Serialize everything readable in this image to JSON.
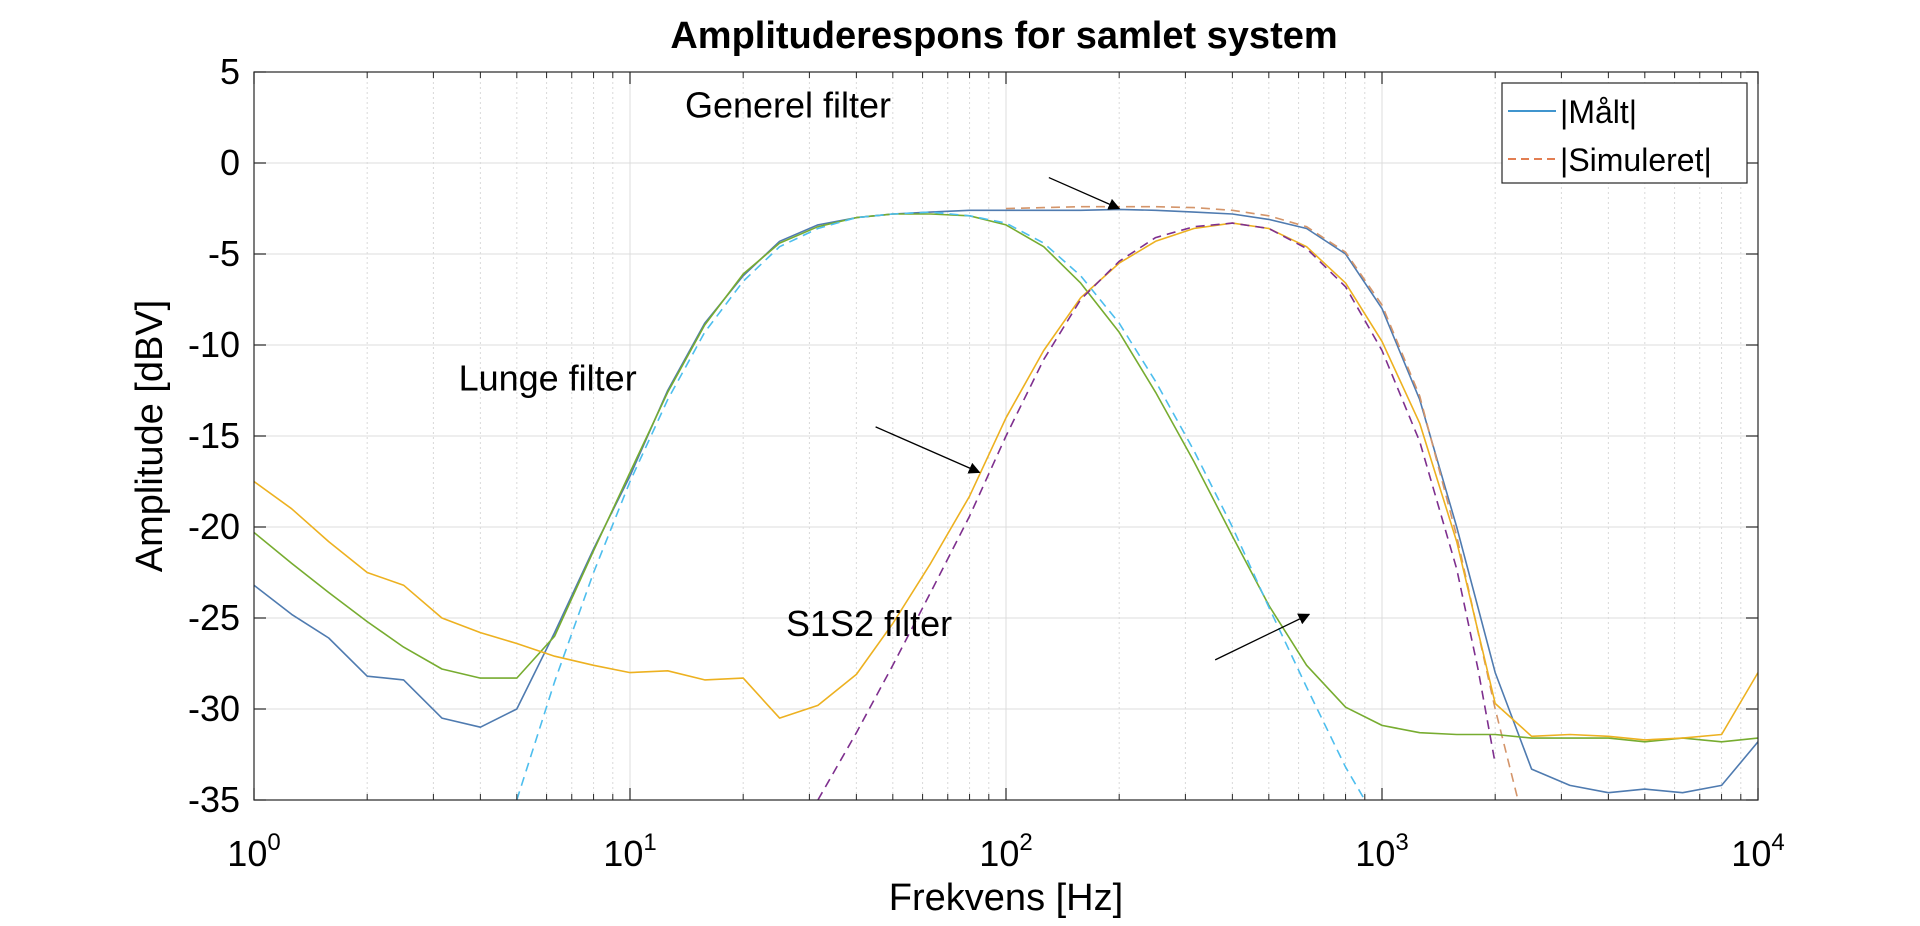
{
  "chart_data": {
    "type": "line",
    "title": "Amplituderespons for samlet system",
    "xlabel": "Frekvens [Hz]",
    "ylabel": "Amplitude [dBV]",
    "xscale": "log",
    "xlim": [
      1,
      10000
    ],
    "ylim": [
      -35,
      5
    ],
    "grid": true,
    "x_ticks": [
      {
        "base": "10",
        "exp": "0",
        "value": 1
      },
      {
        "base": "10",
        "exp": "1",
        "value": 10
      },
      {
        "base": "10",
        "exp": "2",
        "value": 100
      },
      {
        "base": "10",
        "exp": "3",
        "value": 1000
      },
      {
        "base": "10",
        "exp": "4",
        "value": 10000
      }
    ],
    "y_ticks": [
      "5",
      "0",
      "-5",
      "-10",
      "-15",
      "-20",
      "-25",
      "-30",
      "-35"
    ],
    "legend": {
      "position": "top-right",
      "entries": [
        {
          "label": "|Målt|",
          "style": "solid",
          "color": "#0072BD"
        },
        {
          "label": "|Simuleret|",
          "style": "dashed",
          "color": "#D95319"
        }
      ]
    },
    "annotations": [
      {
        "text": "Generel filter",
        "x": 14,
        "y": 2.5,
        "arrow_to": [
          200,
          -2.5
        ]
      },
      {
        "text": "Lunge filter",
        "x": 3.5,
        "y": -12.5,
        "arrow_to": [
          85,
          -17
        ]
      },
      {
        "text": "S1S2 filter",
        "x": 26,
        "y": -26,
        "arrow_to": [
          640,
          -24.8
        ]
      }
    ],
    "series": [
      {
        "group": "generel",
        "kind": "measured",
        "color": "#4F7BB0",
        "style": "solid",
        "x": [
          1,
          1.26,
          1.58,
          2,
          2.5,
          3.16,
          4,
          5,
          6.3,
          8,
          10,
          12.6,
          15.8,
          20,
          25,
          31.6,
          40,
          50,
          63,
          80,
          100,
          126,
          158,
          200,
          250,
          316,
          400,
          500,
          630,
          800,
          1000,
          1260,
          1580,
          2000,
          2500,
          3160,
          4000,
          5000,
          6300,
          8000,
          10000
        ],
        "y": [
          -23.2,
          -24.8,
          -26.1,
          -28.2,
          -28.4,
          -30.5,
          -31.0,
          -30.0,
          -25.8,
          -21.2,
          -17.2,
          -12.5,
          -8.8,
          -6.2,
          -4.3,
          -3.4,
          -3.0,
          -2.8,
          -2.7,
          -2.6,
          -2.6,
          -2.6,
          -2.6,
          -2.55,
          -2.6,
          -2.7,
          -2.8,
          -3.1,
          -3.6,
          -5.0,
          -8.0,
          -13.0,
          -20.0,
          -28.0,
          -33.3,
          -34.2,
          -34.6,
          -34.4,
          -34.6,
          -34.2,
          -31.8
        ]
      },
      {
        "group": "generel",
        "kind": "simulated",
        "color": "#D4956A",
        "style": "dashed",
        "x": [
          100,
          126,
          158,
          200,
          250,
          316,
          400,
          500,
          630,
          800,
          1000,
          1260,
          1580,
          2000,
          2300
        ],
        "y": [
          -2.5,
          -2.45,
          -2.4,
          -2.4,
          -2.4,
          -2.45,
          -2.6,
          -2.9,
          -3.5,
          -4.9,
          -7.8,
          -12.8,
          -20.5,
          -30.0,
          -35.0
        ]
      },
      {
        "group": "s1s2",
        "kind": "measured",
        "color": "#77AC30",
        "style": "solid",
        "x": [
          1,
          1.26,
          1.58,
          2,
          2.5,
          3.16,
          4,
          5,
          6.3,
          8,
          10,
          12.6,
          15.8,
          20,
          25,
          31.6,
          40,
          50,
          63,
          80,
          100,
          126,
          158,
          200,
          250,
          316,
          400,
          500,
          630,
          800,
          1000,
          1260,
          1580,
          2000,
          2500,
          3160,
          4000,
          5000,
          6300,
          8000,
          10000
        ],
        "y": [
          -20.3,
          -22.0,
          -23.6,
          -25.2,
          -26.6,
          -27.8,
          -28.3,
          -28.3,
          -26.0,
          -21.3,
          -17.0,
          -12.6,
          -8.9,
          -6.1,
          -4.4,
          -3.5,
          -3.0,
          -2.8,
          -2.8,
          -2.9,
          -3.4,
          -4.6,
          -6.6,
          -9.3,
          -12.6,
          -16.4,
          -20.5,
          -24.3,
          -27.6,
          -29.9,
          -30.9,
          -31.3,
          -31.4,
          -31.4,
          -31.6,
          -31.6,
          -31.6,
          -31.8,
          -31.6,
          -31.8,
          -31.6
        ]
      },
      {
        "group": "s1s2",
        "kind": "simulated",
        "color": "#4DBEEE",
        "style": "dashed",
        "x": [
          5,
          6.3,
          8,
          10,
          12.6,
          15.8,
          20,
          25,
          31.6,
          40,
          50,
          63,
          80,
          100,
          126,
          158,
          200,
          250,
          316,
          400,
          500,
          630,
          800,
          900
        ],
        "y": [
          -35.0,
          -28.5,
          -22.5,
          -17.5,
          -13.0,
          -9.3,
          -6.5,
          -4.6,
          -3.6,
          -3.0,
          -2.8,
          -2.7,
          -2.9,
          -3.3,
          -4.4,
          -6.2,
          -8.8,
          -12.0,
          -15.8,
          -20.0,
          -24.4,
          -28.8,
          -33.2,
          -35.0
        ]
      },
      {
        "group": "lunge",
        "kind": "measured",
        "color": "#EDB120",
        "style": "solid",
        "x": [
          1,
          1.26,
          1.58,
          2,
          2.5,
          3.16,
          4,
          5,
          6.3,
          8,
          10,
          12.6,
          15.8,
          20,
          25,
          31.6,
          40,
          50,
          63,
          80,
          100,
          126,
          158,
          200,
          250,
          316,
          400,
          500,
          630,
          800,
          1000,
          1260,
          1580,
          2000,
          2500,
          3160,
          4000,
          5000,
          6300,
          8000,
          10000
        ],
        "y": [
          -17.5,
          -19.0,
          -20.8,
          -22.5,
          -23.2,
          -25.0,
          -25.8,
          -26.4,
          -27.1,
          -27.6,
          -28.0,
          -27.9,
          -28.4,
          -28.3,
          -30.5,
          -29.8,
          -28.1,
          -25.3,
          -22.0,
          -18.3,
          -14.0,
          -10.3,
          -7.4,
          -5.5,
          -4.3,
          -3.6,
          -3.3,
          -3.6,
          -4.6,
          -6.6,
          -9.8,
          -14.3,
          -20.8,
          -29.7,
          -31.5,
          -31.4,
          -31.5,
          -31.7,
          -31.6,
          -31.4,
          -28.0
        ]
      },
      {
        "group": "lunge",
        "kind": "simulated",
        "color": "#7E2F8E",
        "style": "dashed",
        "x": [
          31.6,
          40,
          50,
          63,
          80,
          100,
          126,
          158,
          200,
          250,
          316,
          400,
          500,
          630,
          800,
          1000,
          1260,
          1580,
          1800,
          2000
        ],
        "y": [
          -35.0,
          -31.3,
          -27.6,
          -23.6,
          -19.4,
          -15.0,
          -10.8,
          -7.5,
          -5.4,
          -4.1,
          -3.5,
          -3.3,
          -3.6,
          -4.7,
          -6.8,
          -10.3,
          -15.3,
          -22.3,
          -27.8,
          -33.0
        ]
      }
    ]
  }
}
